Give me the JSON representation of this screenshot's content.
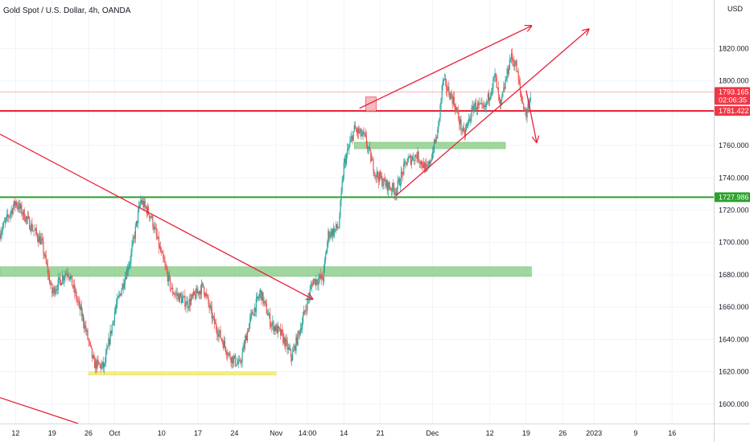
{
  "chart_data": {
    "type": "candlestick",
    "title": "Gold Spot / U.S. Dollar, 4h, OANDA",
    "currency": "USD",
    "ylim": [
      1588,
      1850
    ],
    "y_ticks": [
      "1820.000",
      "1800.000",
      "1780.000",
      "1760.000",
      "1740.000",
      "1720.000",
      "1700.000",
      "1680.000",
      "1660.000",
      "1640.000",
      "1620.000",
      "1600.000"
    ],
    "y_tick_values": [
      1820,
      1800,
      1780,
      1760,
      1740,
      1720,
      1700,
      1680,
      1660,
      1640,
      1620,
      1600
    ],
    "x_ticks": [
      "12",
      "19",
      "26",
      "Oct",
      "10",
      "17",
      "24",
      "Nov",
      "14:00",
      "14",
      "21",
      "Dec",
      "12",
      "19",
      "26",
      "2023",
      "9",
      "16"
    ],
    "x_tick_days": [
      0,
      7,
      14,
      19,
      28,
      35,
      42,
      50,
      56,
      63,
      70,
      80,
      91,
      98,
      105,
      111,
      119,
      126
    ],
    "x_range_days": [
      -3,
      134
    ],
    "price_labels": [
      {
        "text": "1793.165",
        "sub": "02:06:35",
        "value": 1793.165,
        "color": "#f23645"
      },
      {
        "text": "1781.422",
        "value": 1781.422,
        "color": "#f23645"
      },
      {
        "text": "1727.986",
        "value": 1727.986,
        "color": "#2ca02c"
      }
    ],
    "horizontal_lines": [
      {
        "value": 1781.422,
        "color": "#e8213a"
      },
      {
        "value": 1727.986,
        "color": "#2ca02c"
      },
      {
        "value": 1793.165,
        "color": "#f7a8b0"
      }
    ],
    "zones": [
      {
        "x0": -3,
        "x1": 99,
        "y0": 1679,
        "y1": 1685,
        "color": "#8fd18f"
      },
      {
        "x0": 65,
        "x1": 94,
        "y0": 1758,
        "y1": 1762,
        "color": "#8fd18f"
      },
      {
        "x0": 14,
        "x1": 50,
        "y0": 1618,
        "y1": 1620,
        "color": "#f4ec6a"
      }
    ],
    "trendlines": [
      {
        "x0": -3,
        "y0": 1767,
        "x1": 57,
        "y1": 1665,
        "arrow": true
      },
      {
        "x0": 66,
        "y0": 1783,
        "x1": 99,
        "y1": 1834,
        "arrow": true
      },
      {
        "x0": 73,
        "y0": 1729,
        "x1": 110,
        "y1": 1832,
        "arrow": true
      },
      {
        "x0": 98,
        "y0": 1794,
        "x1": 100,
        "y1": 1762,
        "arrow": true
      },
      {
        "x0": -3,
        "y0": 1604,
        "x1": 12,
        "y1": 1588,
        "arrow": false
      }
    ],
    "series": [
      {
        "name": "XAUUSD",
        "color_up": "#26a69a",
        "color_down": "#ef5350",
        "keypoints": [
          [
            -3,
            1706
          ],
          [
            0,
            1725
          ],
          [
            2,
            1715
          ],
          [
            5,
            1700
          ],
          [
            7,
            1669
          ],
          [
            10,
            1683
          ],
          [
            13,
            1652
          ],
          [
            15,
            1625
          ],
          [
            17,
            1623
          ],
          [
            19,
            1657
          ],
          [
            22,
            1690
          ],
          [
            24,
            1726
          ],
          [
            26,
            1716
          ],
          [
            28,
            1692
          ],
          [
            30,
            1670
          ],
          [
            33,
            1662
          ],
          [
            36,
            1673
          ],
          [
            38,
            1651
          ],
          [
            41,
            1630
          ],
          [
            43,
            1624
          ],
          [
            45,
            1652
          ],
          [
            47,
            1669
          ],
          [
            49,
            1650
          ],
          [
            51,
            1643
          ],
          [
            53,
            1629
          ],
          [
            55,
            1651
          ],
          [
            57,
            1676
          ],
          [
            59,
            1678
          ],
          [
            60,
            1705
          ],
          [
            61,
            1707
          ],
          [
            62,
            1710
          ],
          [
            63,
            1748
          ],
          [
            65,
            1770
          ],
          [
            67,
            1765
          ],
          [
            69,
            1743
          ],
          [
            71,
            1736
          ],
          [
            73,
            1732
          ],
          [
            75,
            1750
          ],
          [
            77,
            1754
          ],
          [
            79,
            1744
          ],
          [
            81,
            1768
          ],
          [
            82,
            1800
          ],
          [
            84,
            1788
          ],
          [
            86,
            1766
          ],
          [
            88,
            1785
          ],
          [
            90,
            1782
          ],
          [
            92,
            1803
          ],
          [
            93,
            1783
          ],
          [
            95,
            1815
          ],
          [
            96,
            1810
          ],
          [
            97,
            1790
          ],
          [
            98,
            1779
          ],
          [
            99,
            1794
          ]
        ]
      }
    ]
  }
}
